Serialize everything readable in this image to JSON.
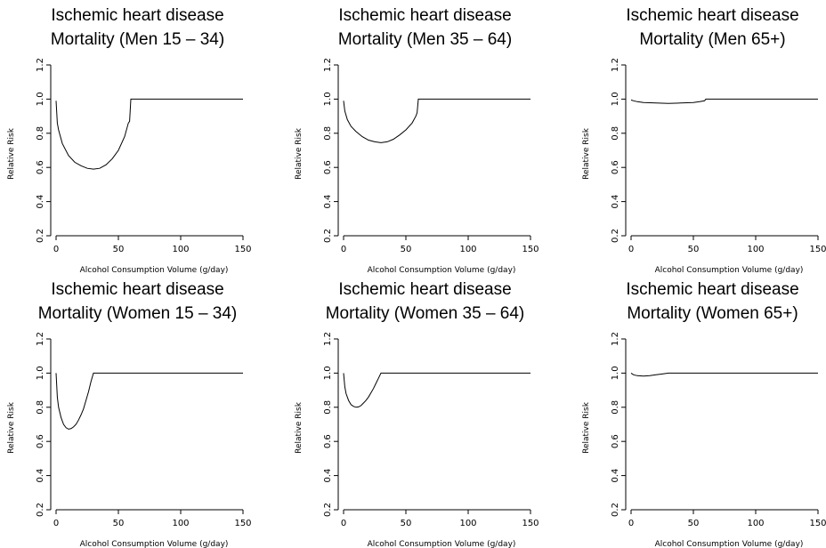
{
  "chart_data": [
    {
      "type": "line",
      "title": [
        "Ischemic heart disease",
        "Mortality (Men 15 – 34)"
      ],
      "xlabel": "Alcohol Consumption Volume (g/day)",
      "ylabel": "Relative Risk",
      "xlim": [
        0,
        150
      ],
      "ylim": [
        0.2,
        1.2
      ],
      "xticks": [
        0,
        50,
        100,
        150
      ],
      "yticks": [
        0.2,
        0.4,
        0.6,
        0.8,
        1.0,
        1.2
      ],
      "ytick_labels": [
        "0.2",
        "0.4",
        "0.6",
        "0.8",
        "1.0",
        "1.2"
      ],
      "series": [
        {
          "x": [
            0,
            1,
            2,
            5,
            10,
            15,
            20,
            25,
            30,
            35,
            40,
            45,
            50,
            55,
            58,
            59,
            60,
            65,
            80,
            100,
            120,
            150
          ],
          "y": [
            0.99,
            0.86,
            0.82,
            0.74,
            0.67,
            0.63,
            0.61,
            0.595,
            0.59,
            0.595,
            0.615,
            0.65,
            0.7,
            0.78,
            0.86,
            0.87,
            1.0,
            1.0,
            1.0,
            1.0,
            1.0,
            1.0
          ]
        }
      ]
    },
    {
      "type": "line",
      "title": [
        "Ischemic heart disease",
        "Mortality (Men 35 – 64)"
      ],
      "xlabel": "Alcohol Consumption Volume (g/day)",
      "ylabel": "Relative Risk",
      "xlim": [
        0,
        150
      ],
      "ylim": [
        0.2,
        1.2
      ],
      "xticks": [
        0,
        50,
        100,
        150
      ],
      "yticks": [
        0.2,
        0.4,
        0.6,
        0.8,
        1.0,
        1.2
      ],
      "ytick_labels": [
        "0.2",
        "0.4",
        "0.6",
        "0.8",
        "1.0",
        "1.2"
      ],
      "series": [
        {
          "x": [
            0,
            1,
            3,
            6,
            10,
            15,
            20,
            25,
            30,
            35,
            40,
            45,
            50,
            55,
            58,
            59,
            60,
            65,
            80,
            100,
            120,
            150
          ],
          "y": [
            0.99,
            0.93,
            0.88,
            0.84,
            0.81,
            0.78,
            0.76,
            0.75,
            0.745,
            0.75,
            0.765,
            0.79,
            0.82,
            0.86,
            0.9,
            0.92,
            1.0,
            1.0,
            1.0,
            1.0,
            1.0,
            1.0
          ]
        }
      ]
    },
    {
      "type": "line",
      "title": [
        "Ischemic heart disease",
        "Mortality (Men 65+)"
      ],
      "xlabel": "Alcohol Consumption Volume (g/day)",
      "ylabel": "Relative Risk",
      "xlim": [
        0,
        150
      ],
      "ylim": [
        0.2,
        1.2
      ],
      "xticks": [
        0,
        50,
        100,
        150
      ],
      "yticks": [
        0.2,
        0.4,
        0.6,
        0.8,
        1.0,
        1.2
      ],
      "ytick_labels": [
        "0.2",
        "0.4",
        "0.6",
        "0.8",
        "1.0",
        "1.2"
      ],
      "series": [
        {
          "x": [
            0,
            2,
            5,
            10,
            20,
            30,
            40,
            50,
            55,
            59,
            60,
            80,
            100,
            120,
            150
          ],
          "y": [
            0.995,
            0.99,
            0.985,
            0.98,
            0.977,
            0.975,
            0.977,
            0.98,
            0.985,
            0.99,
            1.0,
            1.0,
            1.0,
            1.0,
            1.0
          ]
        }
      ]
    },
    {
      "type": "line",
      "title": [
        "Ischemic heart disease",
        "Mortality (Women 15 – 34)"
      ],
      "xlabel": "Alcohol Consumption Volume (g/day)",
      "ylabel": "Relative Risk",
      "xlim": [
        0,
        150
      ],
      "ylim": [
        0.2,
        1.2
      ],
      "xticks": [
        0,
        50,
        100,
        150
      ],
      "yticks": [
        0.2,
        0.4,
        0.6,
        0.8,
        1.0,
        1.2
      ],
      "ytick_labels": [
        "0.2",
        "0.4",
        "0.6",
        "0.8",
        "1.0",
        "1.2"
      ],
      "series": [
        {
          "x": [
            0,
            1,
            2,
            4,
            6,
            8,
            10,
            12,
            14,
            16,
            18,
            20,
            22,
            24,
            26,
            28,
            30,
            35,
            50,
            80,
            100,
            120,
            150
          ],
          "y": [
            1.0,
            0.86,
            0.8,
            0.74,
            0.7,
            0.68,
            0.672,
            0.675,
            0.685,
            0.7,
            0.725,
            0.755,
            0.79,
            0.84,
            0.89,
            0.95,
            1.0,
            1.0,
            1.0,
            1.0,
            1.0,
            1.0,
            1.0
          ]
        }
      ]
    },
    {
      "type": "line",
      "title": [
        "Ischemic heart disease",
        "Mortality (Women 35 – 64)"
      ],
      "xlabel": "Alcohol Consumption Volume (g/day)",
      "ylabel": "Relative Risk",
      "xlim": [
        0,
        150
      ],
      "ylim": [
        0.2,
        1.2
      ],
      "xticks": [
        0,
        50,
        100,
        150
      ],
      "yticks": [
        0.2,
        0.4,
        0.6,
        0.8,
        1.0,
        1.2
      ],
      "ytick_labels": [
        "0.2",
        "0.4",
        "0.6",
        "0.8",
        "1.0",
        "1.2"
      ],
      "series": [
        {
          "x": [
            0,
            1,
            2,
            4,
            6,
            8,
            10,
            12,
            14,
            16,
            18,
            20,
            22,
            24,
            26,
            28,
            30,
            35,
            50,
            80,
            100,
            120,
            150
          ],
          "y": [
            1.0,
            0.92,
            0.88,
            0.84,
            0.815,
            0.805,
            0.8,
            0.802,
            0.81,
            0.825,
            0.84,
            0.86,
            0.885,
            0.91,
            0.94,
            0.97,
            1.0,
            1.0,
            1.0,
            1.0,
            1.0,
            1.0,
            1.0
          ]
        }
      ]
    },
    {
      "type": "line",
      "title": [
        "Ischemic heart disease",
        "Mortality (Women 65+)"
      ],
      "xlabel": "Alcohol Consumption Volume (g/day)",
      "ylabel": "Relative Risk",
      "xlim": [
        0,
        150
      ],
      "ylim": [
        0.2,
        1.2
      ],
      "xticks": [
        0,
        50,
        100,
        150
      ],
      "yticks": [
        0.2,
        0.4,
        0.6,
        0.8,
        1.0,
        1.2
      ],
      "ytick_labels": [
        "0.2",
        "0.4",
        "0.6",
        "0.8",
        "1.0",
        "1.2"
      ],
      "series": [
        {
          "x": [
            0,
            2,
            5,
            10,
            15,
            20,
            25,
            30,
            40,
            60,
            80,
            100,
            120,
            150
          ],
          "y": [
            1.0,
            0.99,
            0.985,
            0.983,
            0.985,
            0.99,
            0.995,
            1.0,
            1.0,
            1.0,
            1.0,
            1.0,
            1.0,
            1.0
          ]
        }
      ]
    }
  ]
}
